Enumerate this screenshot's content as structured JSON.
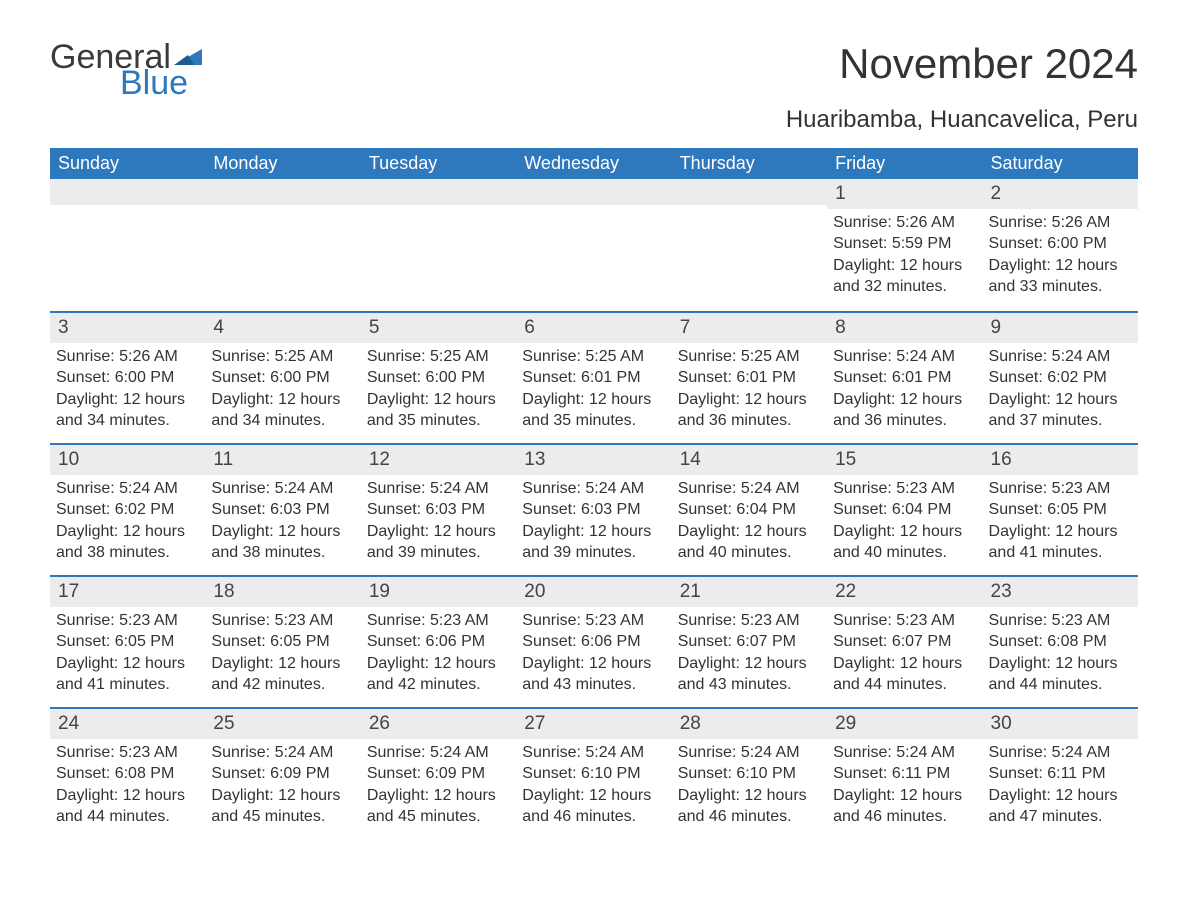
{
  "brand": {
    "part1": "General",
    "part2": "Blue"
  },
  "colors": {
    "header_bg": "#2e78bd",
    "header_text": "#ffffff",
    "rule": "#2e78bd",
    "daynum_bg": "#ececec",
    "text": "#333333",
    "page_bg": "#ffffff"
  },
  "title": "November 2024",
  "location": "Huaribamba, Huancavelica, Peru",
  "weekdays": [
    "Sunday",
    "Monday",
    "Tuesday",
    "Wednesday",
    "Thursday",
    "Friday",
    "Saturday"
  ],
  "weeks": [
    [
      null,
      null,
      null,
      null,
      null,
      {
        "n": "1",
        "sunrise": "Sunrise: 5:26 AM",
        "sunset": "Sunset: 5:59 PM",
        "dl1": "Daylight: 12 hours",
        "dl2": "and 32 minutes."
      },
      {
        "n": "2",
        "sunrise": "Sunrise: 5:26 AM",
        "sunset": "Sunset: 6:00 PM",
        "dl1": "Daylight: 12 hours",
        "dl2": "and 33 minutes."
      }
    ],
    [
      {
        "n": "3",
        "sunrise": "Sunrise: 5:26 AM",
        "sunset": "Sunset: 6:00 PM",
        "dl1": "Daylight: 12 hours",
        "dl2": "and 34 minutes."
      },
      {
        "n": "4",
        "sunrise": "Sunrise: 5:25 AM",
        "sunset": "Sunset: 6:00 PM",
        "dl1": "Daylight: 12 hours",
        "dl2": "and 34 minutes."
      },
      {
        "n": "5",
        "sunrise": "Sunrise: 5:25 AM",
        "sunset": "Sunset: 6:00 PM",
        "dl1": "Daylight: 12 hours",
        "dl2": "and 35 minutes."
      },
      {
        "n": "6",
        "sunrise": "Sunrise: 5:25 AM",
        "sunset": "Sunset: 6:01 PM",
        "dl1": "Daylight: 12 hours",
        "dl2": "and 35 minutes."
      },
      {
        "n": "7",
        "sunrise": "Sunrise: 5:25 AM",
        "sunset": "Sunset: 6:01 PM",
        "dl1": "Daylight: 12 hours",
        "dl2": "and 36 minutes."
      },
      {
        "n": "8",
        "sunrise": "Sunrise: 5:24 AM",
        "sunset": "Sunset: 6:01 PM",
        "dl1": "Daylight: 12 hours",
        "dl2": "and 36 minutes."
      },
      {
        "n": "9",
        "sunrise": "Sunrise: 5:24 AM",
        "sunset": "Sunset: 6:02 PM",
        "dl1": "Daylight: 12 hours",
        "dl2": "and 37 minutes."
      }
    ],
    [
      {
        "n": "10",
        "sunrise": "Sunrise: 5:24 AM",
        "sunset": "Sunset: 6:02 PM",
        "dl1": "Daylight: 12 hours",
        "dl2": "and 38 minutes."
      },
      {
        "n": "11",
        "sunrise": "Sunrise: 5:24 AM",
        "sunset": "Sunset: 6:03 PM",
        "dl1": "Daylight: 12 hours",
        "dl2": "and 38 minutes."
      },
      {
        "n": "12",
        "sunrise": "Sunrise: 5:24 AM",
        "sunset": "Sunset: 6:03 PM",
        "dl1": "Daylight: 12 hours",
        "dl2": "and 39 minutes."
      },
      {
        "n": "13",
        "sunrise": "Sunrise: 5:24 AM",
        "sunset": "Sunset: 6:03 PM",
        "dl1": "Daylight: 12 hours",
        "dl2": "and 39 minutes."
      },
      {
        "n": "14",
        "sunrise": "Sunrise: 5:24 AM",
        "sunset": "Sunset: 6:04 PM",
        "dl1": "Daylight: 12 hours",
        "dl2": "and 40 minutes."
      },
      {
        "n": "15",
        "sunrise": "Sunrise: 5:23 AM",
        "sunset": "Sunset: 6:04 PM",
        "dl1": "Daylight: 12 hours",
        "dl2": "and 40 minutes."
      },
      {
        "n": "16",
        "sunrise": "Sunrise: 5:23 AM",
        "sunset": "Sunset: 6:05 PM",
        "dl1": "Daylight: 12 hours",
        "dl2": "and 41 minutes."
      }
    ],
    [
      {
        "n": "17",
        "sunrise": "Sunrise: 5:23 AM",
        "sunset": "Sunset: 6:05 PM",
        "dl1": "Daylight: 12 hours",
        "dl2": "and 41 minutes."
      },
      {
        "n": "18",
        "sunrise": "Sunrise: 5:23 AM",
        "sunset": "Sunset: 6:05 PM",
        "dl1": "Daylight: 12 hours",
        "dl2": "and 42 minutes."
      },
      {
        "n": "19",
        "sunrise": "Sunrise: 5:23 AM",
        "sunset": "Sunset: 6:06 PM",
        "dl1": "Daylight: 12 hours",
        "dl2": "and 42 minutes."
      },
      {
        "n": "20",
        "sunrise": "Sunrise: 5:23 AM",
        "sunset": "Sunset: 6:06 PM",
        "dl1": "Daylight: 12 hours",
        "dl2": "and 43 minutes."
      },
      {
        "n": "21",
        "sunrise": "Sunrise: 5:23 AM",
        "sunset": "Sunset: 6:07 PM",
        "dl1": "Daylight: 12 hours",
        "dl2": "and 43 minutes."
      },
      {
        "n": "22",
        "sunrise": "Sunrise: 5:23 AM",
        "sunset": "Sunset: 6:07 PM",
        "dl1": "Daylight: 12 hours",
        "dl2": "and 44 minutes."
      },
      {
        "n": "23",
        "sunrise": "Sunrise: 5:23 AM",
        "sunset": "Sunset: 6:08 PM",
        "dl1": "Daylight: 12 hours",
        "dl2": "and 44 minutes."
      }
    ],
    [
      {
        "n": "24",
        "sunrise": "Sunrise: 5:23 AM",
        "sunset": "Sunset: 6:08 PM",
        "dl1": "Daylight: 12 hours",
        "dl2": "and 44 minutes."
      },
      {
        "n": "25",
        "sunrise": "Sunrise: 5:24 AM",
        "sunset": "Sunset: 6:09 PM",
        "dl1": "Daylight: 12 hours",
        "dl2": "and 45 minutes."
      },
      {
        "n": "26",
        "sunrise": "Sunrise: 5:24 AM",
        "sunset": "Sunset: 6:09 PM",
        "dl1": "Daylight: 12 hours",
        "dl2": "and 45 minutes."
      },
      {
        "n": "27",
        "sunrise": "Sunrise: 5:24 AM",
        "sunset": "Sunset: 6:10 PM",
        "dl1": "Daylight: 12 hours",
        "dl2": "and 46 minutes."
      },
      {
        "n": "28",
        "sunrise": "Sunrise: 5:24 AM",
        "sunset": "Sunset: 6:10 PM",
        "dl1": "Daylight: 12 hours",
        "dl2": "and 46 minutes."
      },
      {
        "n": "29",
        "sunrise": "Sunrise: 5:24 AM",
        "sunset": "Sunset: 6:11 PM",
        "dl1": "Daylight: 12 hours",
        "dl2": "and 46 minutes."
      },
      {
        "n": "30",
        "sunrise": "Sunrise: 5:24 AM",
        "sunset": "Sunset: 6:11 PM",
        "dl1": "Daylight: 12 hours",
        "dl2": "and 47 minutes."
      }
    ]
  ]
}
